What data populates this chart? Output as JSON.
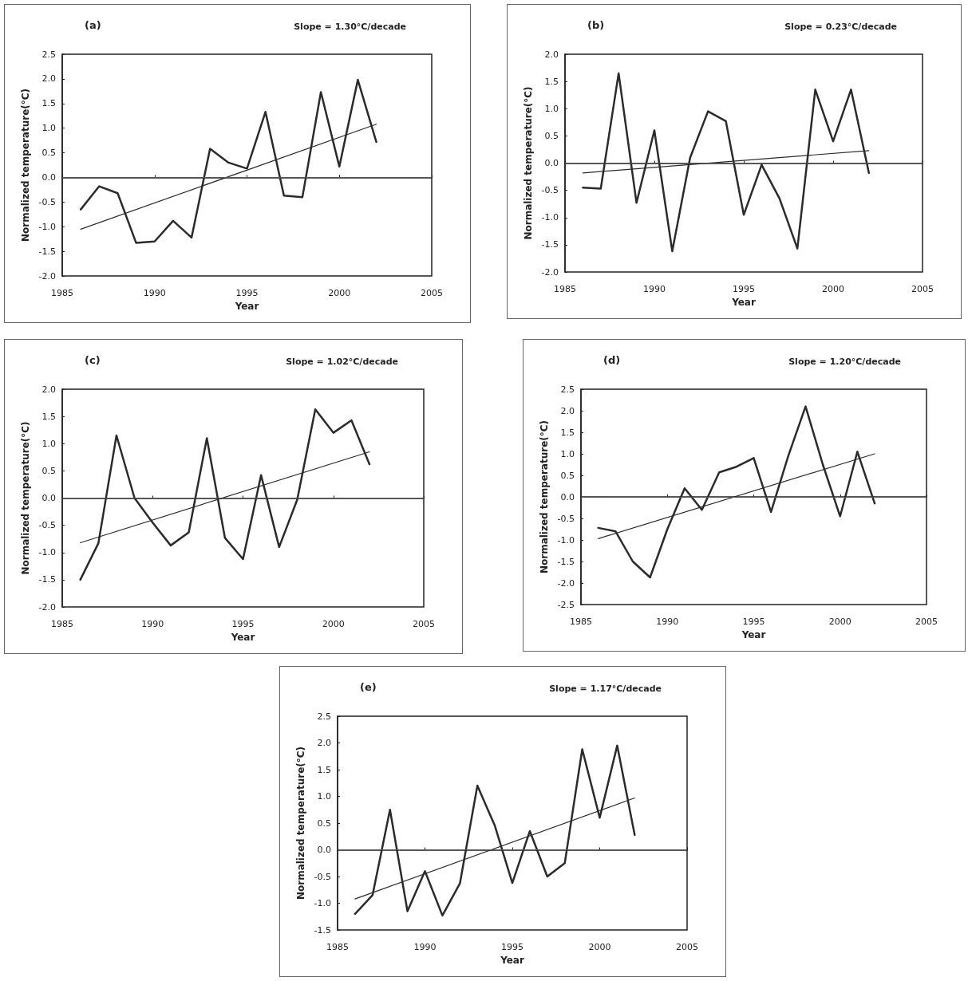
{
  "chart_data": [
    {
      "type": "line",
      "title": "(a)",
      "annotations": [
        "Slope = 1.30°C/decade"
      ],
      "xlabel": "Year",
      "ylabel": "Normalized temperature(°C)",
      "xlim": [
        1985,
        2005
      ],
      "xticks": [
        1985,
        1990,
        1995,
        2000,
        2005
      ],
      "ylim": [
        -2,
        2.5
      ],
      "yticks": [
        {
          "value": -2,
          "label": "-2.0"
        },
        {
          "value": -1.5,
          "label": "-1.5"
        },
        {
          "value": -1,
          "label": "-1.0"
        },
        {
          "value": -0.5,
          "label": "-0.5"
        },
        {
          "value": 0,
          "label": "0.0"
        },
        {
          "value": 0.5,
          "label": "0.5"
        },
        {
          "value": 1,
          "label": "1.0"
        },
        {
          "value": 1.5,
          "label": "1.5"
        },
        {
          "value": 2,
          "label": "2.0"
        },
        {
          "value": 2.5,
          "label": "2.5"
        }
      ],
      "grid": false,
      "marker": "none",
      "line_style": "solid",
      "ref_lines": [
        {
          "axis": "y",
          "value": 0,
          "color": "#555555"
        }
      ],
      "series": [
        {
          "color": "#2b2b2b",
          "x": [
            1986,
            1987,
            1988,
            1989,
            1990,
            1991,
            1992,
            1993,
            1994,
            1995,
            1996,
            1997,
            1998,
            1999,
            2000,
            2001,
            2002
          ],
          "values": [
            -0.65,
            -0.18,
            -0.32,
            -1.33,
            -1.3,
            -0.88,
            -1.22,
            0.58,
            0.3,
            0.18,
            1.33,
            -0.37,
            -0.4,
            1.73,
            0.22,
            1.98,
            0.72
          ]
        },
        {
          "color": "#2b2b2b",
          "x": [
            1986,
            2002
          ],
          "values": [
            -1.05,
            1.08
          ]
        }
      ]
    },
    {
      "type": "line",
      "title": "(b)",
      "annotations": [
        "Slope = 0.23°C/decade"
      ],
      "xlabel": "Year",
      "ylabel": "Normalized temperature(°C)",
      "xlim": [
        1985,
        2005
      ],
      "xticks": [
        1985,
        1990,
        1995,
        2000,
        2005
      ],
      "ylim": [
        -2,
        2
      ],
      "yticks": [
        {
          "value": -2,
          "label": "-2.0"
        },
        {
          "value": -1.5,
          "label": "-1.5"
        },
        {
          "value": -1,
          "label": "-1.0"
        },
        {
          "value": -0.5,
          "label": "-0.5"
        },
        {
          "value": 0,
          "label": "0.0"
        },
        {
          "value": 0.5,
          "label": "0.5"
        },
        {
          "value": 1,
          "label": "1.0"
        },
        {
          "value": 1.5,
          "label": "1.5"
        },
        {
          "value": 2,
          "label": "2.0"
        }
      ],
      "grid": false,
      "marker": "none",
      "line_style": "solid",
      "ref_lines": [
        {
          "axis": "y",
          "value": 0,
          "color": "#555555"
        }
      ],
      "series": [
        {
          "color": "#2b2b2b",
          "x": [
            1986,
            1987,
            1988,
            1989,
            1990,
            1991,
            1992,
            1993,
            1994,
            1995,
            1996,
            1997,
            1998,
            1999,
            2000,
            2001,
            2002
          ],
          "values": [
            -0.45,
            -0.47,
            1.65,
            -0.73,
            0.6,
            -1.62,
            0.1,
            0.95,
            0.77,
            -0.95,
            -0.03,
            -0.65,
            -1.57,
            1.35,
            0.4,
            1.35,
            -0.18
          ]
        },
        {
          "color": "#2b2b2b",
          "x": [
            1986,
            2002
          ],
          "values": [
            -0.18,
            0.23
          ]
        }
      ]
    },
    {
      "type": "line",
      "title": "(c)",
      "annotations": [
        "Slope = 1.02°C/decade"
      ],
      "xlabel": "Year",
      "ylabel": "Normalized temperature(°C)",
      "xlim": [
        1985,
        2005
      ],
      "xticks": [
        1985,
        1990,
        1995,
        2000,
        2005
      ],
      "ylim": [
        -2,
        2
      ],
      "yticks": [
        {
          "value": -2,
          "label": "-2.0"
        },
        {
          "value": -1.5,
          "label": "-1.5"
        },
        {
          "value": -1,
          "label": "-1.0"
        },
        {
          "value": -0.5,
          "label": "-0.5"
        },
        {
          "value": 0,
          "label": "0.0"
        },
        {
          "value": 0.5,
          "label": "0.5"
        },
        {
          "value": 1,
          "label": "1.0"
        },
        {
          "value": 1.5,
          "label": "1.5"
        },
        {
          "value": 2,
          "label": "2.0"
        }
      ],
      "grid": false,
      "marker": "none",
      "line_style": "solid",
      "ref_lines": [
        {
          "axis": "y",
          "value": 0,
          "color": "#555555"
        }
      ],
      "series": [
        {
          "color": "#2b2b2b",
          "x": [
            1986,
            1987,
            1988,
            1989,
            1990,
            1991,
            1992,
            1993,
            1994,
            1995,
            1996,
            1997,
            1998,
            1999,
            2000,
            2001,
            2002
          ],
          "values": [
            -1.5,
            -0.83,
            1.15,
            0.0,
            -0.45,
            -0.87,
            -0.63,
            1.1,
            -0.73,
            -1.12,
            0.42,
            -0.9,
            -0.03,
            1.63,
            1.2,
            1.43,
            0.62
          ]
        },
        {
          "color": "#2b2b2b",
          "x": [
            1986,
            2002
          ],
          "values": [
            -0.82,
            0.85
          ]
        }
      ]
    },
    {
      "type": "line",
      "title": "(d)",
      "annotations": [
        "Slope = 1.20°C/decade"
      ],
      "xlabel": "Year",
      "ylabel": "Normalized temperature(°C)",
      "xlim": [
        1985,
        2005
      ],
      "xticks": [
        1985,
        1990,
        1995,
        2000,
        2005
      ],
      "ylim": [
        -2.5,
        2.5
      ],
      "yticks": [
        {
          "value": -2.5,
          "label": "-2.5"
        },
        {
          "value": -2,
          "label": "-2.0"
        },
        {
          "value": -1.5,
          "label": "-1.5"
        },
        {
          "value": -1,
          "label": "-1.0"
        },
        {
          "value": -0.5,
          "label": "-0.5"
        },
        {
          "value": 0,
          "label": "0.0"
        },
        {
          "value": 0.5,
          "label": "0.5"
        },
        {
          "value": 1,
          "label": "1.0"
        },
        {
          "value": 1.5,
          "label": "1.5"
        },
        {
          "value": 2,
          "label": "2.0"
        },
        {
          "value": 2.5,
          "label": "2.5"
        }
      ],
      "grid": false,
      "marker": "none",
      "line_style": "solid",
      "ref_lines": [
        {
          "axis": "y",
          "value": 0,
          "color": "#555555"
        }
      ],
      "series": [
        {
          "color": "#2b2b2b",
          "x": [
            1986,
            1987,
            1988,
            1989,
            1990,
            1991,
            1992,
            1993,
            1994,
            1995,
            1996,
            1997,
            1998,
            1999,
            2000,
            2001,
            2002
          ],
          "values": [
            -0.72,
            -0.8,
            -1.5,
            -1.87,
            -0.75,
            0.2,
            -0.3,
            0.57,
            0.7,
            0.9,
            -0.35,
            0.95,
            2.1,
            0.75,
            -0.45,
            1.05,
            -0.15
          ]
        },
        {
          "color": "#2b2b2b",
          "x": [
            1986,
            2002
          ],
          "values": [
            -0.97,
            1.0
          ]
        }
      ]
    },
    {
      "type": "line",
      "title": "(e)",
      "annotations": [
        "Slope = 1.17°C/decade"
      ],
      "xlabel": "Year",
      "ylabel": "Normalized temperature(°C)",
      "xlim": [
        1985,
        2005
      ],
      "xticks": [
        1985,
        1990,
        1995,
        2000,
        2005
      ],
      "ylim": [
        -1.5,
        2.5
      ],
      "yticks": [
        {
          "value": -1.5,
          "label": "-1.5"
        },
        {
          "value": -1,
          "label": "-1.0"
        },
        {
          "value": -0.5,
          "label": "-0.5"
        },
        {
          "value": 0,
          "label": "0.0"
        },
        {
          "value": 0.5,
          "label": "0.5"
        },
        {
          "value": 1,
          "label": "1.0"
        },
        {
          "value": 1.5,
          "label": "1.5"
        },
        {
          "value": 2,
          "label": "2.0"
        },
        {
          "value": 2.5,
          "label": "2.5"
        }
      ],
      "grid": false,
      "marker": "none",
      "line_style": "solid",
      "ref_lines": [
        {
          "axis": "y",
          "value": 0,
          "color": "#555555"
        }
      ],
      "series": [
        {
          "color": "#2b2b2b",
          "x": [
            1986,
            1987,
            1988,
            1989,
            1990,
            1991,
            1992,
            1993,
            1994,
            1995,
            1996,
            1997,
            1998,
            1999,
            2000,
            2001,
            2002
          ],
          "values": [
            -1.2,
            -0.85,
            0.75,
            -1.15,
            -0.4,
            -1.23,
            -0.63,
            1.2,
            0.45,
            -0.62,
            0.35,
            -0.5,
            -0.25,
            1.88,
            0.6,
            1.95,
            0.28
          ]
        },
        {
          "color": "#2b2b2b",
          "x": [
            1986,
            2002
          ],
          "values": [
            -0.92,
            0.97
          ]
        }
      ]
    }
  ]
}
